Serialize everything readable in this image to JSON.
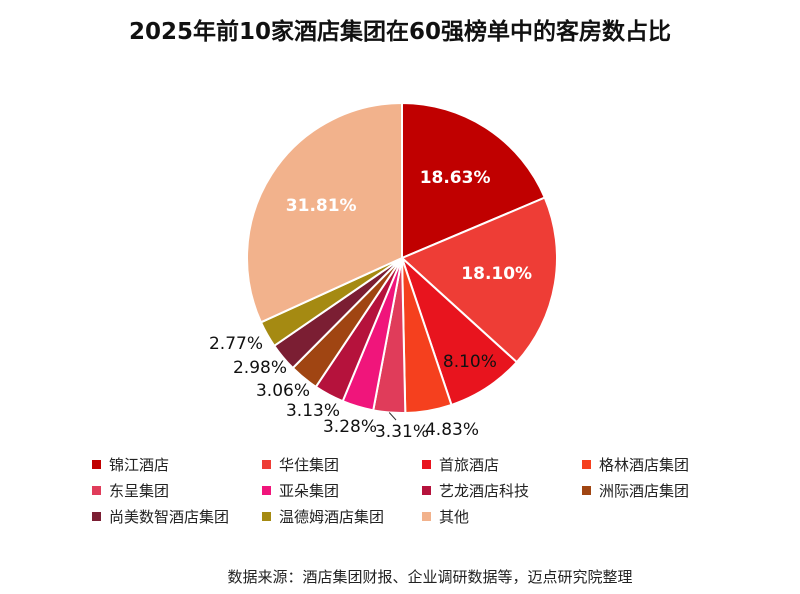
{
  "title": "2025年前10家酒店集团在60强榜单中的客房数占比",
  "source_note": "数据来源：酒店集团财报、企业调研数据等，迈点研究院整理",
  "chart_data": {
    "type": "pie",
    "title": "2025年前10家酒店集团在60强榜单中的客房数占比",
    "legend_position": "bottom",
    "start_angle_deg": 0,
    "direction": "clockwise",
    "slices": [
      {
        "label": "锦江酒店",
        "value": 18.63,
        "display": "18.63%",
        "color": "#C00000"
      },
      {
        "label": "华住集团",
        "value": 18.1,
        "display": "18.10%",
        "color": "#EE3D36"
      },
      {
        "label": "首旅酒店",
        "value": 8.1,
        "display": "8.10%",
        "color": "#E8141E"
      },
      {
        "label": "格林酒店集团",
        "value": 4.83,
        "display": "4.83%",
        "color": "#F5401E"
      },
      {
        "label": "东呈集团",
        "value": 3.31,
        "display": "3.31%",
        "color": "#E03C5A"
      },
      {
        "label": "亚朵集团",
        "value": 3.28,
        "display": "3.28%",
        "color": "#F0157B"
      },
      {
        "label": "艺龙酒店科技",
        "value": 3.13,
        "display": "3.13%",
        "color": "#B5123C"
      },
      {
        "label": "洲际酒店集团",
        "value": 3.06,
        "display": "3.06%",
        "color": "#A04512"
      },
      {
        "label": "尚美数智酒店集团",
        "value": 2.98,
        "display": "2.98%",
        "color": "#7B1E33"
      },
      {
        "label": "温德姆酒店集团",
        "value": 2.77,
        "display": "2.77%",
        "color": "#A58A12"
      },
      {
        "label": "其他",
        "value": 31.81,
        "display": "31.81%",
        "color": "#F2B28C"
      }
    ]
  }
}
